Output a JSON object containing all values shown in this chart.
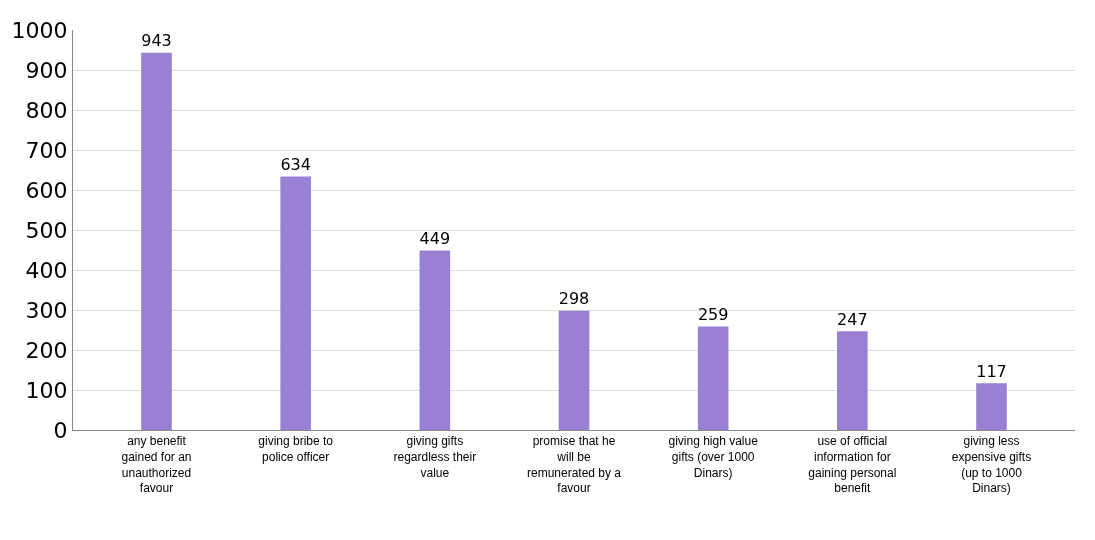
{
  "chart_data": {
    "type": "bar",
    "categories": [
      "any benefit gained for an unauthorized favour",
      "giving bribe to police officer",
      "giving gifts regardless their value",
      "promise that he will be remunerated by a favour",
      "giving high value gifts (over 1000 Dinars)",
      "use of official information for gaining personal benefit",
      "giving less expensive gifts (up to 1000 Dinars)"
    ],
    "values": [
      943,
      634,
      449,
      298,
      259,
      247,
      117
    ],
    "color": "#9a80d2",
    "ylim": [
      0,
      1000
    ],
    "yticks": [
      0,
      100,
      200,
      300,
      400,
      500,
      600,
      700,
      800,
      900,
      1000
    ],
    "grid": "y",
    "data_labels": true
  }
}
